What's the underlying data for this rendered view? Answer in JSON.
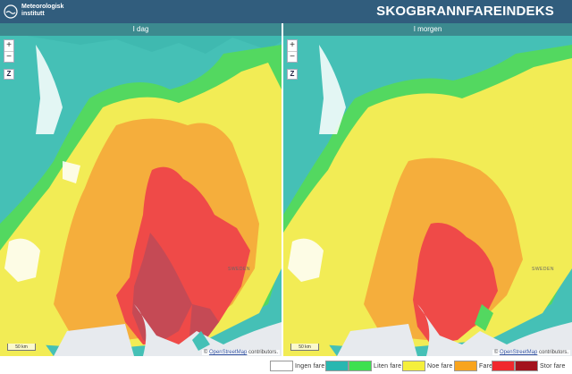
{
  "brand": {
    "name": "Meteorologisk\ninstitutt",
    "logo_icon": "met-logo-icon"
  },
  "title": "SKOGBRANNFAREINDEKS",
  "panes": [
    {
      "label": "I dag",
      "zoom_in": "+",
      "zoom_out": "−",
      "tool": "Z",
      "scale": "50 km",
      "place": "SWEDEN",
      "attribution_prefix": "© ",
      "attribution_link": "OpenStreetMap",
      "attribution_suffix": " contributors."
    },
    {
      "label": "I morgen",
      "zoom_in": "+",
      "zoom_out": "−",
      "tool": "Z",
      "scale": "50 km",
      "place": "SWEDEN",
      "attribution_prefix": "© ",
      "attribution_link": "OpenStreetMap",
      "attribution_suffix": " contributors."
    }
  ],
  "legend": [
    {
      "label": "Ingen fare",
      "colors": [
        "#ffffff"
      ]
    },
    {
      "label": "Liten fare",
      "colors": [
        "#28b7b0",
        "#3ee050"
      ]
    },
    {
      "label": "Noe fare",
      "colors": [
        "#f5ef3c"
      ]
    },
    {
      "label": "Fare",
      "colors": [
        "#f8a41e"
      ]
    },
    {
      "label": "Stor fare",
      "colors": [
        "#f0282d",
        "#a3131d"
      ]
    }
  ],
  "colors": {
    "header": "#315d7d",
    "pane_header": "#3c8a8f",
    "sea": "#e7eaee",
    "ingen": "#ffffff",
    "liten_teal": "#45c0b6",
    "liten_green": "#53d860",
    "noe": "#f2ec55",
    "fare": "#f5ae3c",
    "stor": "#ef4a48",
    "stor_dark": "#c54a55"
  }
}
